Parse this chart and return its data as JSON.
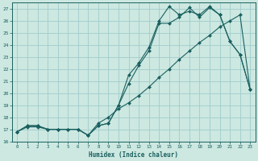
{
  "xlabel": "Humidex (Indice chaleur)",
  "xlim": [
    -0.5,
    23.5
  ],
  "ylim": [
    16,
    27.5
  ],
  "xticks": [
    0,
    1,
    2,
    3,
    4,
    5,
    6,
    7,
    8,
    9,
    10,
    11,
    12,
    13,
    14,
    15,
    16,
    17,
    18,
    19,
    20,
    21,
    22,
    23
  ],
  "yticks": [
    16,
    17,
    18,
    19,
    20,
    21,
    22,
    23,
    24,
    25,
    26,
    27
  ],
  "bg_color": "#cce8e0",
  "grid_color": "#a0cccc",
  "line_color": "#1a6060",
  "series1_y": [
    16.8,
    17.3,
    17.3,
    17.0,
    17.0,
    17.0,
    17.0,
    16.5,
    17.3,
    17.5,
    19.0,
    20.8,
    22.3,
    23.5,
    25.8,
    25.8,
    26.3,
    27.1,
    26.3,
    27.1,
    26.5,
    24.3,
    23.2,
    20.3
  ],
  "series2_y": [
    16.8,
    17.3,
    17.3,
    17.0,
    17.0,
    17.0,
    17.0,
    16.5,
    17.3,
    17.5,
    19.0,
    21.5,
    22.5,
    23.8,
    26.0,
    27.2,
    26.5,
    26.8,
    26.5,
    27.2,
    26.5,
    24.3,
    23.2,
    20.3
  ],
  "series3_y": [
    16.8,
    17.2,
    17.2,
    17.0,
    17.0,
    17.0,
    17.0,
    16.5,
    17.5,
    18.0,
    18.7,
    19.2,
    19.8,
    20.5,
    21.3,
    22.0,
    22.8,
    23.5,
    24.2,
    24.8,
    25.5,
    26.0,
    26.5,
    20.3
  ]
}
